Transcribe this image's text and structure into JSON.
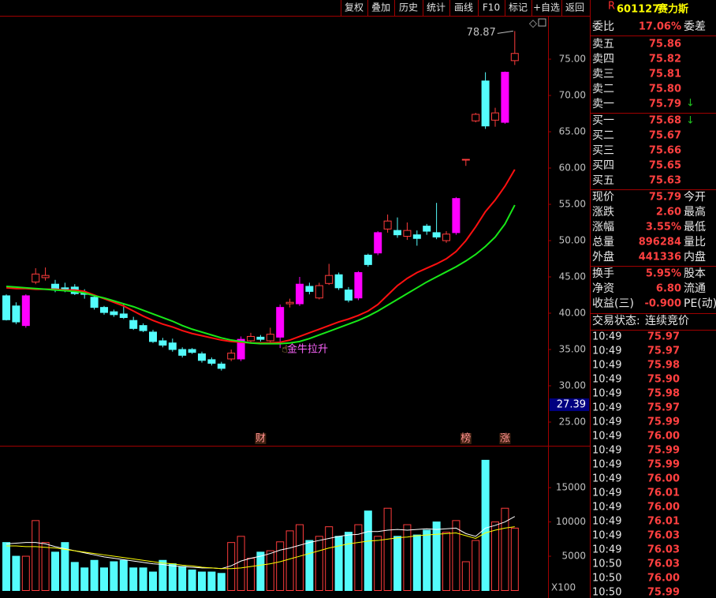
{
  "toolbar": [
    "复权",
    "叠加",
    "历史",
    "统计",
    "画线",
    "F10",
    "标记",
    "+自选",
    "返回"
  ],
  "chart_data": {
    "type": "candlestick",
    "high_mark": 78.87,
    "annotation": "金牛拉升",
    "price_marker": 27.39,
    "event_markers": [
      null,
      null,
      null,
      null,
      null,
      null,
      null,
      null,
      null,
      null,
      null,
      null,
      null,
      null,
      null,
      null,
      null,
      null,
      null,
      null,
      null,
      null,
      null,
      null,
      null,
      null,
      "财",
      null,
      null,
      null,
      null,
      null,
      null,
      null,
      null,
      null,
      null,
      null,
      null,
      null,
      null,
      null,
      null,
      null,
      null,
      null,
      null,
      "榜",
      null,
      null,
      null,
      "涨",
      null
    ],
    "ylim": [
      21.74,
      80.98
    ],
    "yticks": [
      {
        "value": 25,
        "label": "25.00"
      },
      {
        "value": 30,
        "label": "30.00"
      },
      {
        "value": 35,
        "label": "35.00"
      },
      {
        "value": 40,
        "label": "40.00"
      },
      {
        "value": 45,
        "label": "45.00"
      },
      {
        "value": 50,
        "label": "50.00"
      },
      {
        "value": 55,
        "label": "55.00"
      },
      {
        "value": 60,
        "label": "60.00"
      },
      {
        "value": 65,
        "label": "65.00"
      },
      {
        "value": 70,
        "label": "70.00"
      },
      {
        "value": 75,
        "label": "75.00"
      }
    ],
    "colors": {
      "up": "#ff3c3c",
      "down": "#54fcfc",
      "strong": "#ff00ff"
    },
    "open": [
      42.4,
      41,
      38.3,
      44.3,
      44.9,
      44,
      43.5,
      43.6,
      42.8,
      42.2,
      40.8,
      40.2,
      39.9,
      39,
      38.3,
      37.4,
      36.2,
      35.9,
      35,
      35,
      34.4,
      33.6,
      33,
      33.7,
      33.7,
      36.2,
      36.7,
      36.2,
      36.7,
      41.3,
      41.3,
      43.7,
      42.1,
      44.1,
      45.3,
      43.2,
      42.1,
      48,
      48.3,
      51.6,
      51.4,
      50.6,
      50.8,
      52,
      51.1,
      50,
      51.1,
      61.2,
      66.5,
      72,
      66.6,
      66.3,
      74.8
    ],
    "high": [
      42.6,
      41.5,
      42.6,
      46.2,
      46.3,
      44.6,
      44.2,
      44,
      43.3,
      42.6,
      41,
      40.5,
      41.4,
      39.5,
      38.6,
      37.7,
      36.6,
      36.5,
      35.3,
      35.2,
      34.7,
      33.9,
      33.3,
      35,
      36.8,
      37.3,
      37,
      38,
      41.2,
      42,
      45,
      44.2,
      44.2,
      46.8,
      45.6,
      43.6,
      45.8,
      48.2,
      51.3,
      53.6,
      53.2,
      52.5,
      51.4,
      52.3,
      55.2,
      51.3,
      56,
      61.2,
      67.6,
      73.2,
      68.3,
      73.3,
      78.87
    ],
    "low": [
      39,
      38.5,
      38,
      44,
      44.5,
      42.9,
      42.9,
      42.5,
      42,
      40.5,
      39.8,
      39.5,
      39.2,
      37.7,
      37.4,
      35.9,
      35.3,
      34.7,
      33.9,
      34.4,
      33.2,
      32.8,
      32.1,
      33.4,
      33.4,
      35.9,
      36.1,
      35.9,
      35.2,
      40.8,
      41,
      42.6,
      41.9,
      43.9,
      43.2,
      41.5,
      41.8,
      46.4,
      48,
      51.1,
      50.4,
      50.1,
      49.3,
      50.8,
      50.2,
      49.7,
      50.8,
      60.3,
      66.3,
      65.4,
      65.7,
      66.1,
      74.2
    ],
    "close": [
      39.1,
      38.8,
      42.4,
      45.4,
      45.2,
      43.2,
      43.1,
      42.7,
      42.6,
      40.8,
      40.1,
      39.8,
      39.4,
      37.9,
      37.6,
      36.1,
      35.6,
      35,
      34.2,
      34.6,
      33.5,
      33.1,
      32.4,
      34.5,
      36.4,
      36.8,
      36.4,
      37.1,
      40.8,
      41.5,
      44,
      43,
      43.8,
      45.2,
      43.5,
      41.8,
      45.6,
      46.7,
      51.1,
      52.7,
      50.8,
      51.4,
      50.3,
      51.3,
      50.5,
      50.9,
      55.8,
      61.2,
      67.4,
      65.8,
      67.6,
      73.2,
      75.79
    ],
    "ma": [
      {
        "color": "#ff1010",
        "values": [
          43.5,
          43.4,
          43.4,
          43.3,
          43.3,
          43.3,
          43.2,
          43.2,
          43,
          42.5,
          42,
          41.5,
          41,
          40.3,
          39.6,
          39,
          38.5,
          38.1,
          37.6,
          37.2,
          36.9,
          36.6,
          36.3,
          36.1,
          36,
          35.9,
          35.9,
          35.9,
          36,
          36.3,
          36.8,
          37.3,
          37.8,
          38.3,
          38.8,
          39.2,
          39.7,
          40.3,
          41.2,
          42.5,
          43.8,
          44.8,
          45.6,
          46.2,
          46.8,
          47.5,
          48.5,
          50,
          51.9,
          54,
          55.6,
          57.5,
          59.8
        ]
      },
      {
        "color": "#18e818",
        "values": [
          43.7,
          43.6,
          43.5,
          43.4,
          43.3,
          43.2,
          43.1,
          43,
          42.8,
          42.4,
          42.1,
          41.7,
          41.3,
          40.9,
          40.4,
          39.9,
          39.4,
          38.9,
          38.3,
          37.8,
          37.4,
          37,
          36.6,
          36.3,
          36.1,
          35.9,
          35.8,
          35.8,
          35.8,
          35.9,
          36.1,
          36.5,
          37,
          37.5,
          38,
          38.5,
          39,
          39.6,
          40.3,
          41.1,
          41.9,
          42.7,
          43.5,
          44.3,
          45,
          45.7,
          46.4,
          47.2,
          48.1,
          49.2,
          50.5,
          52.3,
          54.9
        ]
      }
    ],
    "volume": {
      "values": [
        7000,
        5000,
        5000,
        10200,
        7000,
        5600,
        7000,
        4100,
        3300,
        4400,
        3300,
        4200,
        4400,
        3300,
        3300,
        2700,
        4400,
        3900,
        3500,
        3000,
        2700,
        2700,
        2500,
        7000,
        7900,
        4700,
        5600,
        5800,
        7100,
        8700,
        9600,
        7300,
        7900,
        9300,
        7900,
        8500,
        9600,
        11600,
        7900,
        12000,
        7900,
        9600,
        8100,
        8800,
        10000,
        8500,
        10200,
        4200,
        7300,
        19000,
        10000,
        12000,
        9100
      ],
      "ylim": [
        0,
        21000
      ],
      "yticks": [
        5000,
        10000,
        15000
      ],
      "unit_label": "X100",
      "ma": [
        {
          "color": "#ffffff",
          "values": [
            6800,
            6900,
            7000,
            7000,
            6800,
            6400,
            6100,
            5800,
            5500,
            5200,
            4900,
            4700,
            4500,
            4300,
            4100,
            3900,
            3800,
            3600,
            3500,
            3400,
            3300,
            3300,
            3200,
            3600,
            4300,
            4700,
            5000,
            5400,
            5900,
            6200,
            6600,
            7000,
            7300,
            7600,
            7900,
            8100,
            8200,
            8600,
            8600,
            8800,
            8900,
            8800,
            8900,
            9000,
            8900,
            9000,
            9100,
            8300,
            7900,
            9100,
            9500,
            10000,
            10800
          ]
        },
        {
          "color": "#ffff00",
          "values": [
            6500,
            6500,
            6400,
            6400,
            6300,
            6200,
            6000,
            5800,
            5600,
            5400,
            5200,
            5000,
            4800,
            4600,
            4400,
            4200,
            4000,
            3900,
            3700,
            3600,
            3400,
            3300,
            3200,
            3200,
            3300,
            3500,
            3700,
            3900,
            4200,
            4600,
            5000,
            5400,
            5800,
            6200,
            6500,
            6800,
            7000,
            7200,
            7300,
            7500,
            7700,
            7800,
            8000,
            8100,
            8200,
            8300,
            8400,
            8000,
            7600,
            8400,
            8800,
            9100,
            9300
          ]
        }
      ]
    }
  },
  "quote": {
    "flag": "R",
    "code": "601127",
    "name": "赛力斯",
    "ratio": {
      "label": "委比",
      "value": "17.06%",
      "label2": "委差"
    },
    "asks": [
      {
        "label": "卖五",
        "price": "75.86"
      },
      {
        "label": "卖四",
        "price": "75.82"
      },
      {
        "label": "卖三",
        "price": "75.81"
      },
      {
        "label": "卖二",
        "price": "75.80"
      },
      {
        "label": "卖一",
        "price": "75.79"
      }
    ],
    "bids": [
      {
        "label": "买一",
        "price": "75.68"
      },
      {
        "label": "买二",
        "price": "75.67"
      },
      {
        "label": "买三",
        "price": "75.66"
      },
      {
        "label": "买四",
        "price": "75.65"
      },
      {
        "label": "买五",
        "price": "75.63"
      }
    ],
    "stats": [
      {
        "label": "现价",
        "value": "75.79",
        "label2": "今开"
      },
      {
        "label": "涨跌",
        "value": "2.60",
        "label2": "最高"
      },
      {
        "label": "涨幅",
        "value": "3.55%",
        "label2": "最低"
      },
      {
        "label": "总量",
        "value": "896284",
        "label2": "量比"
      },
      {
        "label": "外盘",
        "value": "441336",
        "label2": "内盘"
      }
    ],
    "stats2": [
      {
        "label": "换手",
        "value": "5.95%",
        "label2": "股本"
      },
      {
        "label": "净资",
        "value": "6.80",
        "label2": "流通"
      },
      {
        "label": "收益(三)",
        "value": "-0.900",
        "label2": "PE(动)"
      }
    ],
    "status": {
      "label": "交易状态:",
      "value": "连续竞价"
    }
  },
  "trades": [
    {
      "time": "10:49",
      "price": "75.97"
    },
    {
      "time": "10:49",
      "price": "75.97"
    },
    {
      "time": "10:49",
      "price": "75.98"
    },
    {
      "time": "10:49",
      "price": "75.90"
    },
    {
      "time": "10:49",
      "price": "75.98"
    },
    {
      "time": "10:49",
      "price": "75.97"
    },
    {
      "time": "10:49",
      "price": "75.99"
    },
    {
      "time": "10:49",
      "price": "76.00"
    },
    {
      "time": "10:49",
      "price": "75.99"
    },
    {
      "time": "10:49",
      "price": "75.99"
    },
    {
      "time": "10:49",
      "price": "76.00"
    },
    {
      "time": "10:49",
      "price": "76.01"
    },
    {
      "time": "10:49",
      "price": "76.00"
    },
    {
      "time": "10:49",
      "price": "76.01"
    },
    {
      "time": "10:49",
      "price": "76.03"
    },
    {
      "time": "10:49",
      "price": "76.03"
    },
    {
      "time": "10:50",
      "price": "76.03"
    },
    {
      "time": "10:50",
      "price": "76.00"
    },
    {
      "time": "10:50",
      "price": "75.99"
    }
  ]
}
